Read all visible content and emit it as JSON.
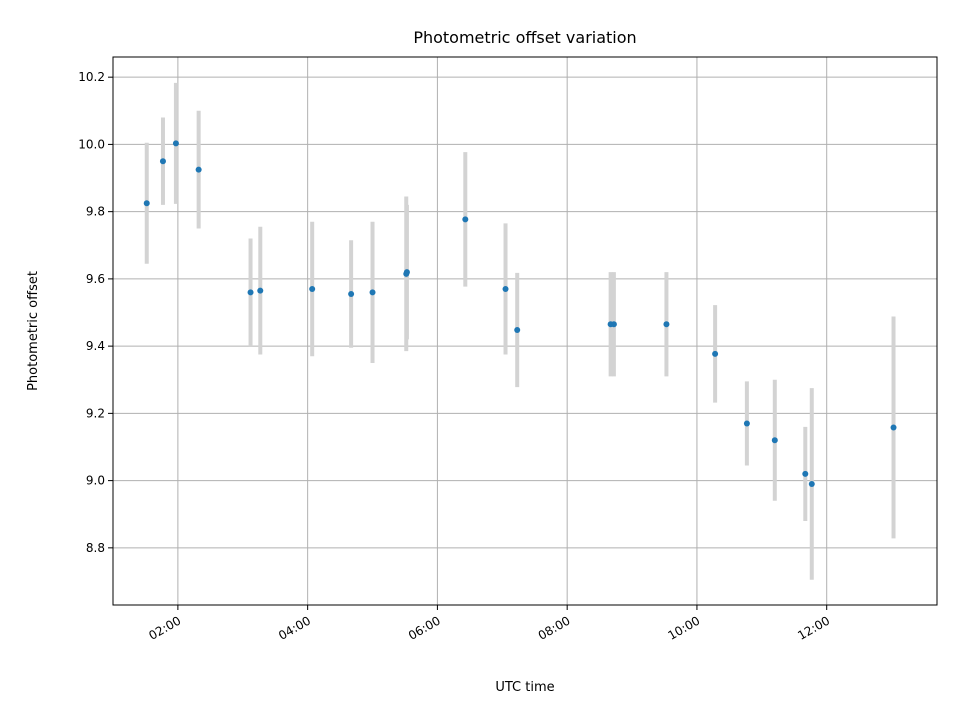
{
  "chart_data": {
    "type": "scatter",
    "title": "Photometric offset variation",
    "xlabel": "UTC time",
    "ylabel": "Photometric offset",
    "x_unit": "hours UTC",
    "xlim": [
      1.0,
      13.7
    ],
    "ylim": [
      8.63,
      10.26
    ],
    "x_ticks": [
      {
        "value": 2,
        "label": "02:00"
      },
      {
        "value": 4,
        "label": "04:00"
      },
      {
        "value": 6,
        "label": "06:00"
      },
      {
        "value": 8,
        "label": "08:00"
      },
      {
        "value": 10,
        "label": "10:00"
      },
      {
        "value": 12,
        "label": "12:00"
      }
    ],
    "y_ticks": [
      {
        "value": 8.8,
        "label": "8.8"
      },
      {
        "value": 9.0,
        "label": "9.0"
      },
      {
        "value": 9.2,
        "label": "9.2"
      },
      {
        "value": 9.4,
        "label": "9.4"
      },
      {
        "value": 9.6,
        "label": "9.6"
      },
      {
        "value": 9.8,
        "label": "9.8"
      },
      {
        "value": 10.0,
        "label": "10.0"
      },
      {
        "value": 10.2,
        "label": "10.2"
      }
    ],
    "grid": true,
    "colors": {
      "point": "#1f77b4",
      "errorbar": "#d3d3d3"
    },
    "points": [
      {
        "x": 1.52,
        "y": 9.825,
        "err": 0.18
      },
      {
        "x": 1.77,
        "y": 9.95,
        "err": 0.13
      },
      {
        "x": 1.97,
        "y": 10.003,
        "err": 0.18
      },
      {
        "x": 2.32,
        "y": 9.925,
        "err": 0.175
      },
      {
        "x": 3.12,
        "y": 9.56,
        "err": 0.16
      },
      {
        "x": 3.27,
        "y": 9.565,
        "err": 0.19
      },
      {
        "x": 4.07,
        "y": 9.57,
        "err": 0.2
      },
      {
        "x": 4.67,
        "y": 9.555,
        "err": 0.16
      },
      {
        "x": 5.0,
        "y": 9.56,
        "err": 0.21
      },
      {
        "x": 5.52,
        "y": 9.615,
        "err": 0.23
      },
      {
        "x": 5.53,
        "y": 9.62,
        "err": 0.2
      },
      {
        "x": 6.43,
        "y": 9.777,
        "err": 0.2
      },
      {
        "x": 7.05,
        "y": 9.57,
        "err": 0.195
      },
      {
        "x": 7.23,
        "y": 9.448,
        "err": 0.17
      },
      {
        "x": 8.67,
        "y": 9.465,
        "err": 0.155
      },
      {
        "x": 8.72,
        "y": 9.465,
        "err": 0.155
      },
      {
        "x": 9.53,
        "y": 9.465,
        "err": 0.155
      },
      {
        "x": 10.28,
        "y": 9.377,
        "err": 0.145
      },
      {
        "x": 10.77,
        "y": 9.17,
        "err": 0.125
      },
      {
        "x": 11.2,
        "y": 9.12,
        "err": 0.18
      },
      {
        "x": 11.67,
        "y": 9.02,
        "err": 0.14
      },
      {
        "x": 11.77,
        "y": 8.99,
        "err": 0.285
      },
      {
        "x": 13.03,
        "y": 9.158,
        "err": 0.33
      }
    ]
  }
}
